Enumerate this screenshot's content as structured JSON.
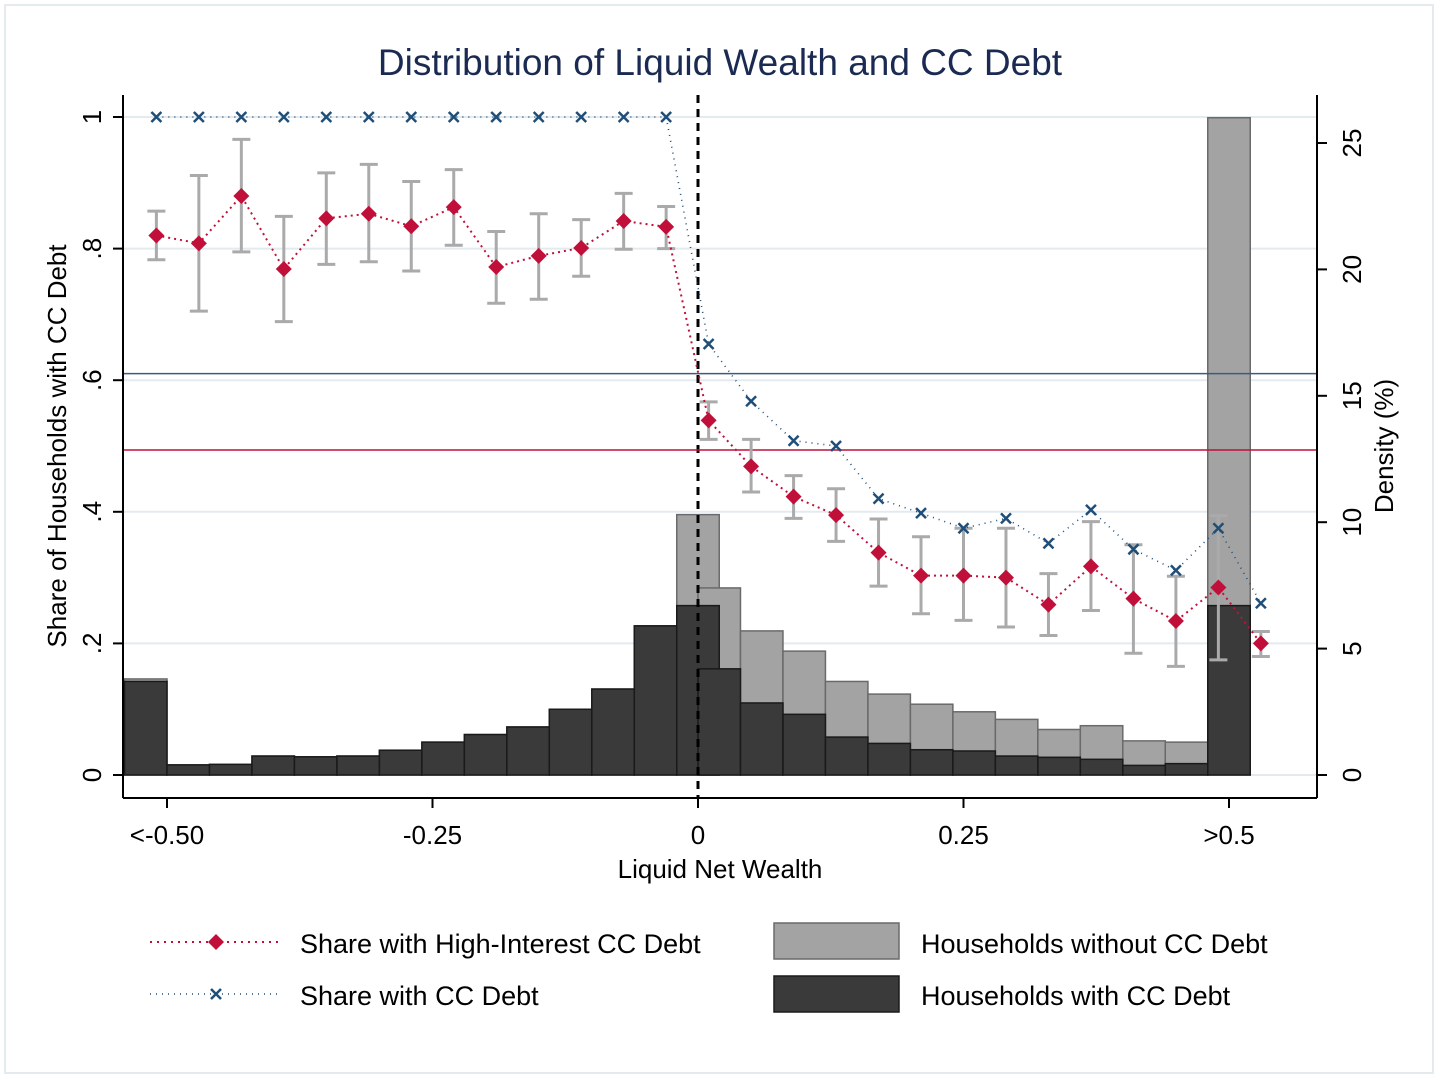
{
  "chart_data": {
    "type": "bar",
    "title": "Distribution of Liquid Wealth and CC Debt",
    "xlabel": "Liquid Net Wealth",
    "ylabel_left": "Share of Households with CC Debt",
    "ylabel_right": "Density (%)",
    "x_tick_labels": [
      "<-0.50",
      "-0.25",
      "0",
      "0.25",
      ">0.5"
    ],
    "x_tick_values": [
      -0.5,
      -0.25,
      0,
      0.25,
      0.5
    ],
    "y_left_tick_labels": [
      "0",
      ".2",
      ".4",
      ".6",
      ".8",
      "1"
    ],
    "y_left_tick_values": [
      0,
      0.2,
      0.4,
      0.6,
      0.8,
      1.0
    ],
    "y_right_tick_labels": [
      "0",
      "5",
      "10",
      "15",
      "20",
      "25"
    ],
    "y_right_tick_values": [
      0,
      5,
      10,
      15,
      20,
      25
    ],
    "xlim": [
      -0.56,
      0.57
    ],
    "ylim_left": [
      0,
      1.04
    ],
    "ylim_right": [
      0,
      26.8
    ],
    "bin_width": 0.04,
    "histogram_bins_left_edges": [
      -0.54,
      -0.5,
      -0.46,
      -0.42,
      -0.38,
      -0.34,
      -0.3,
      -0.26,
      -0.22,
      -0.18,
      -0.14,
      -0.1,
      -0.06,
      -0.02,
      0.0,
      0.04,
      0.08,
      0.12,
      0.16,
      0.2,
      0.24,
      0.28,
      0.32,
      0.36,
      0.4,
      0.44,
      0.48,
      0.52
    ],
    "series": [
      {
        "name": "Households without CC Debt",
        "kind": "bar",
        "axis": "right",
        "color": "#a3a3a3",
        "values": [
          3.8,
          0.4,
          0.42,
          0.75,
          0.72,
          0.75,
          0.98,
          1.3,
          1.6,
          1.9,
          2.6,
          3.4,
          5.9,
          10.3,
          7.4,
          5.7,
          4.9,
          3.7,
          3.2,
          2.8,
          2.5,
          2.2,
          1.8,
          1.95,
          1.35,
          1.3,
          26.0,
          0
        ]
      },
      {
        "name": "Households with CC Debt",
        "kind": "bar",
        "axis": "right",
        "color": "#3a3a3a",
        "values": [
          3.7,
          0.4,
          0.42,
          0.75,
          0.72,
          0.75,
          0.98,
          1.3,
          1.6,
          1.9,
          2.6,
          3.4,
          5.9,
          6.7,
          4.2,
          2.85,
          2.4,
          1.5,
          1.25,
          1.0,
          0.95,
          0.75,
          0.7,
          0.62,
          0.38,
          0.45,
          6.7,
          0
        ]
      },
      {
        "name": "Share with High-Interest CC Debt",
        "kind": "line",
        "axis": "left",
        "color": "#c0103a",
        "x": [
          -0.51,
          -0.47,
          -0.43,
          -0.39,
          -0.35,
          -0.31,
          -0.27,
          -0.23,
          -0.19,
          -0.15,
          -0.11,
          -0.07,
          -0.03,
          0.01,
          0.05,
          0.09,
          0.13,
          0.17,
          0.21,
          0.25,
          0.29,
          0.33,
          0.37,
          0.41,
          0.45,
          0.49,
          0.53
        ],
        "y": [
          0.82,
          0.808,
          0.88,
          0.769,
          0.846,
          0.853,
          0.834,
          0.863,
          0.772,
          0.789,
          0.801,
          0.842,
          0.833,
          0.539,
          0.469,
          0.423,
          0.395,
          0.338,
          0.303,
          0.303,
          0.3,
          0.259,
          0.317,
          0.268,
          0.234,
          0.285,
          0.2
        ],
        "ci_low": [
          0.783,
          0.705,
          0.795,
          0.689,
          0.776,
          0.78,
          0.766,
          0.805,
          0.717,
          0.723,
          0.758,
          0.799,
          0.8,
          0.51,
          0.43,
          0.39,
          0.355,
          0.287,
          0.245,
          0.235,
          0.225,
          0.212,
          0.25,
          0.185,
          0.165,
          0.175,
          0.18
        ],
        "ci_high": [
          0.857,
          0.911,
          0.966,
          0.849,
          0.915,
          0.928,
          0.902,
          0.92,
          0.826,
          0.853,
          0.844,
          0.884,
          0.864,
          0.567,
          0.51,
          0.455,
          0.435,
          0.389,
          0.362,
          0.375,
          0.375,
          0.306,
          0.385,
          0.35,
          0.302,
          0.394,
          0.218
        ]
      },
      {
        "name": "Share with CC Debt",
        "kind": "line",
        "axis": "left",
        "color": "#1f4e79",
        "x": [
          -0.51,
          -0.47,
          -0.43,
          -0.39,
          -0.35,
          -0.31,
          -0.27,
          -0.23,
          -0.19,
          -0.15,
          -0.11,
          -0.07,
          -0.03,
          0.01,
          0.05,
          0.09,
          0.13,
          0.17,
          0.21,
          0.25,
          0.29,
          0.33,
          0.37,
          0.41,
          0.45,
          0.49,
          0.53
        ],
        "y": [
          1.0,
          1.0,
          1.0,
          1.0,
          1.0,
          1.0,
          1.0,
          1.0,
          1.0,
          1.0,
          1.0,
          1.0,
          1.0,
          0.655,
          0.568,
          0.508,
          0.5,
          0.42,
          0.398,
          0.375,
          0.39,
          0.352,
          0.403,
          0.343,
          0.311,
          0.375,
          0.261
        ]
      }
    ],
    "reference_lines": [
      {
        "kind": "vertical",
        "axis": "x",
        "value": 0,
        "style": "dashed",
        "color": "#000000"
      },
      {
        "kind": "horizontal",
        "axis": "left",
        "value": 0.61,
        "color": "#3b5b80"
      },
      {
        "kind": "horizontal",
        "axis": "left",
        "value": 0.494,
        "color": "#c0103a"
      }
    ],
    "grid": "horizontal at left-axis ticks",
    "legend_position": "bottom"
  },
  "legend": {
    "items": [
      {
        "label": "Share with High-Interest CC Debt",
        "kind": "line-diamond",
        "color": "#c0103a"
      },
      {
        "label": "Share with CC Debt",
        "kind": "line-x",
        "color": "#1f4e79"
      },
      {
        "label": "Households without CC Debt",
        "kind": "box",
        "color": "#a3a3a3"
      },
      {
        "label": "Households with CC Debt",
        "kind": "box",
        "color": "#3a3a3a"
      }
    ]
  },
  "colors": {
    "background": "#ffffff",
    "figure_border": "#e3ebef",
    "grid": "#e3ebef",
    "title": "#1a2a52",
    "ci_whisker": "#aaaaaa"
  }
}
